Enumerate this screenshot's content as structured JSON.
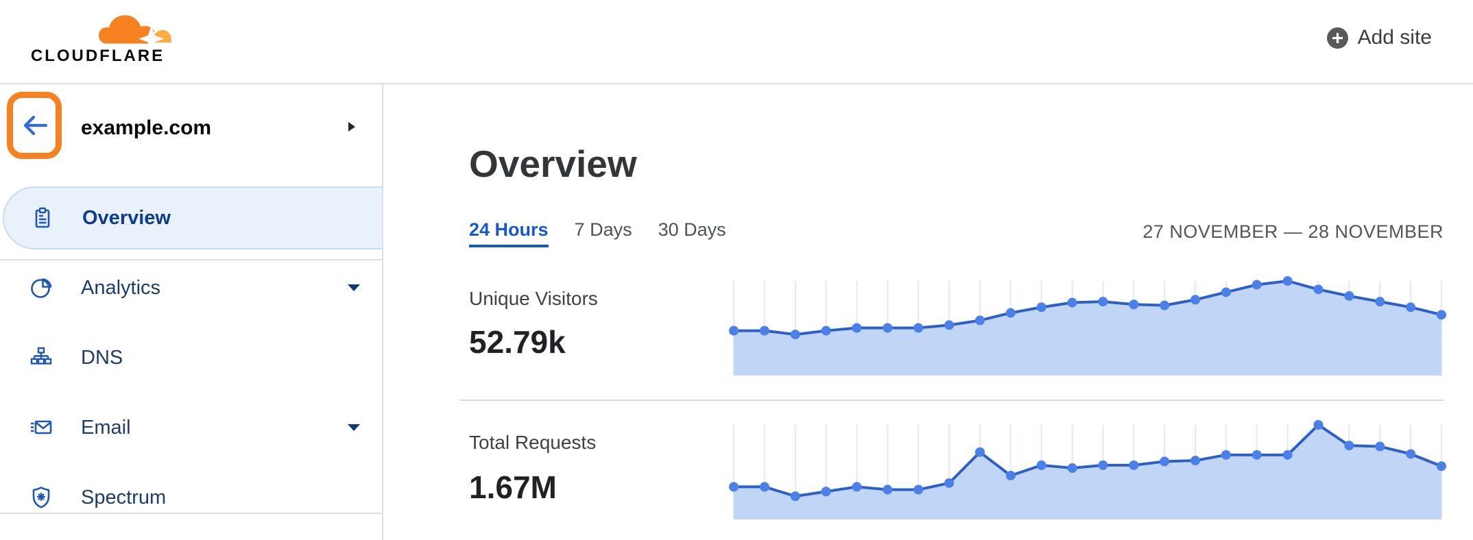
{
  "header": {
    "logo_text": "CLOUDFLARE",
    "add_site_label": "Add site"
  },
  "sidebar": {
    "site_name": "example.com",
    "nav": [
      {
        "label": "Overview",
        "icon": "clipboard-icon",
        "active": true,
        "expandable": false
      },
      {
        "label": "Analytics",
        "icon": "pie-chart-icon",
        "active": false,
        "expandable": true
      },
      {
        "label": "DNS",
        "icon": "dns-tree-icon",
        "active": false,
        "expandable": false
      },
      {
        "label": "Email",
        "icon": "email-icon",
        "active": false,
        "expandable": true
      },
      {
        "label": "Spectrum",
        "icon": "shield-icon",
        "active": false,
        "expandable": false
      }
    ]
  },
  "main": {
    "title": "Overview",
    "tabs": [
      {
        "label": "24 Hours",
        "active": true
      },
      {
        "label": "7 Days",
        "active": false
      },
      {
        "label": "30 Days",
        "active": false
      }
    ],
    "date_range": "27 NOVEMBER — 28 NOVEMBER"
  },
  "chart_data": [
    {
      "type": "area",
      "title": "Unique Visitors",
      "displayed_total": "52.79k",
      "points": 24,
      "x_axis": "hourly points across 24 Hours (27–28 November), no tick labels shown",
      "y_axis": "no axis labels shown; values are relative heights 0-100",
      "grid": "vertical gridline at each data point",
      "legend": "none",
      "relative_values": [
        47,
        47,
        43,
        47,
        50,
        50,
        50,
        53,
        58,
        66,
        72,
        77,
        78,
        75,
        74,
        80,
        88,
        96,
        100,
        91,
        84,
        78,
        72,
        64
      ]
    },
    {
      "type": "area",
      "title": "Total Requests",
      "displayed_total": "1.67M",
      "points": 24,
      "x_axis": "hourly points across 24 Hours (27–28 November), no tick labels shown",
      "y_axis": "no axis labels shown; values are relative heights 0-100",
      "grid": "vertical gridline at each data point",
      "legend": "none",
      "relative_values": [
        34,
        34,
        24,
        29,
        34,
        31,
        31,
        38,
        71,
        46,
        57,
        54,
        57,
        57,
        61,
        62,
        68,
        68,
        68,
        100,
        78,
        77,
        69,
        56
      ]
    }
  ],
  "colors": {
    "brand_orange": "#f6821f",
    "brand_orange_light": "#fbad41",
    "link_blue": "#1757d0",
    "active_item_bg": "#e9f1fb",
    "active_item_border": "#c8dcf5",
    "sidebar_icon_blue": "#1e56b8",
    "chart_line": "#2d5fc8",
    "chart_fill": "#c1d6f6",
    "chart_dot": "#4a80e8",
    "chart_grid": "#e8ebf0",
    "divider_gray": "#dcdfe3"
  }
}
